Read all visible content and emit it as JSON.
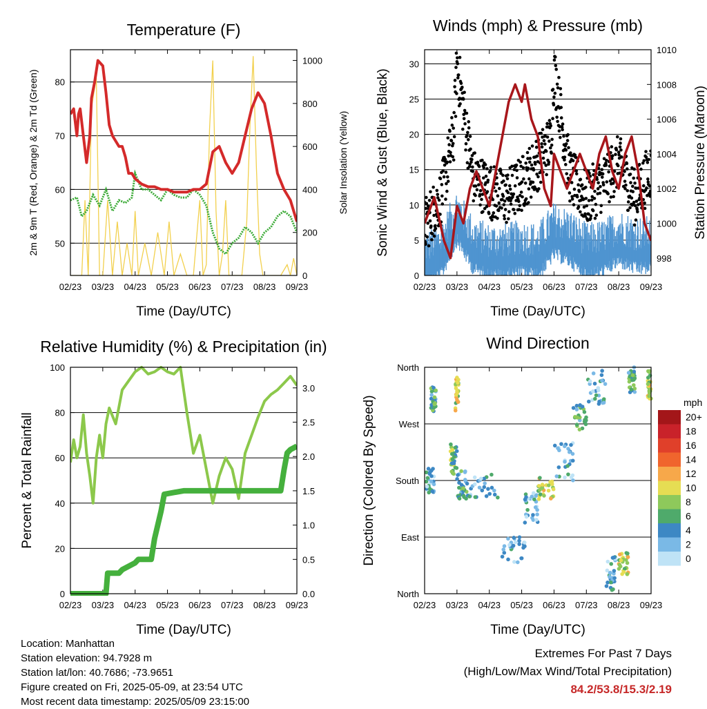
{
  "x_ticks": [
    "02/23",
    "03/23",
    "04/23",
    "05/23",
    "06/23",
    "07/23",
    "08/23",
    "09/23"
  ],
  "time_axis_label": "Time (Day/UTC)",
  "colors": {
    "temperature": "#d42a2a",
    "dewpoint": "#3aaa35",
    "solar": "#f2d04d",
    "wind": "#4f94d0",
    "gust": "#000000",
    "pressure": "#a8161b",
    "humidity": "#8cc84b",
    "rainfall": "#45b03d",
    "gridline": "#000000"
  },
  "chart_data": [
    {
      "id": "temperature",
      "type": "line",
      "title": "Temperature (F)",
      "xlabel": "Time (Day/UTC)",
      "ylabel": "2m & 9m T (Red, Orange) & 2m Td (Green)",
      "ylabel_right": "Solar Insolation (Yellow)",
      "ylim": [
        44,
        86
      ],
      "yticks": [
        50,
        60,
        70,
        80
      ],
      "ylim_right": [
        0,
        1050
      ],
      "yticks_right": [
        0,
        200,
        400,
        600,
        800,
        1000
      ],
      "grid": true,
      "series": [
        {
          "key": "t2m",
          "axis": "left",
          "x": [
            0,
            0.1,
            0.2,
            0.25,
            0.3,
            0.4,
            0.5,
            0.6,
            0.65,
            0.75,
            0.85,
            1,
            1.1,
            1.2,
            1.3,
            1.4,
            1.5,
            1.6,
            1.7,
            1.8,
            1.9,
            2,
            2.2,
            2.4,
            2.6,
            2.8,
            3,
            3.2,
            3.4,
            3.6,
            3.8,
            4,
            4.2,
            4.4,
            4.6,
            4.8,
            5,
            5.2,
            5.4,
            5.6,
            5.8,
            6,
            6.2,
            6.4,
            6.6,
            6.8,
            7
          ],
          "y": [
            74,
            75,
            70,
            74,
            75,
            70,
            65,
            70,
            77,
            80,
            84,
            83,
            78,
            72,
            70,
            69,
            68,
            68,
            66,
            63,
            63,
            62,
            61,
            60.5,
            60.5,
            60,
            60,
            59.5,
            59.5,
            59.5,
            60,
            60,
            61,
            67,
            68,
            65,
            63,
            65,
            70,
            75,
            78,
            76,
            70,
            63,
            60,
            58,
            54
          ]
        },
        {
          "key": "td2m",
          "axis": "left",
          "x": [
            0,
            0.2,
            0.35,
            0.5,
            0.7,
            0.9,
            1.1,
            1.3,
            1.5,
            1.7,
            1.9,
            2,
            2.2,
            2.4,
            2.6,
            2.8,
            3,
            3.2,
            3.4,
            3.6,
            3.8,
            4,
            4.2,
            4.4,
            4.6,
            4.8,
            5,
            5.2,
            5.4,
            5.6,
            5.8,
            6,
            6.2,
            6.4,
            6.6,
            6.8,
            7
          ],
          "y": [
            58,
            58.5,
            55,
            56,
            59,
            57,
            60,
            56,
            58,
            57.5,
            58.5,
            63,
            60,
            60,
            59,
            58,
            60,
            59,
            58.5,
            58.5,
            60,
            59,
            57,
            52,
            49,
            48,
            50,
            51,
            53,
            52,
            50,
            52,
            53,
            55,
            56,
            55,
            52
          ]
        },
        {
          "key": "solar",
          "axis": "right",
          "x": [
            0,
            0.35,
            0.45,
            0.55,
            0.65,
            0.8,
            0.9,
            1,
            1.15,
            1.3,
            1.45,
            1.6,
            1.75,
            1.9,
            2.0,
            2.1,
            2.3,
            2.5,
            2.7,
            2.9,
            3.05,
            3.2,
            3.4,
            3.6,
            3.8,
            4.0,
            4.1,
            4.2,
            4.3,
            4.4,
            4.5,
            4.6,
            4.7,
            4.8,
            4.9,
            5.1,
            5.3,
            5.45,
            5.55,
            5.65,
            5.75,
            5.85,
            5.95,
            6.1,
            6.3,
            6.5,
            6.7,
            6.8,
            6.9,
            7
          ],
          "y": [
            0,
            0,
            350,
            0,
            780,
            920,
            0,
            0,
            350,
            0,
            250,
            0,
            150,
            0,
            300,
            0,
            150,
            0,
            200,
            0,
            250,
            0,
            100,
            0,
            0,
            350,
            0,
            50,
            680,
            1000,
            300,
            0,
            100,
            350,
            0,
            0,
            0,
            250,
            700,
            1020,
            500,
            100,
            0,
            0,
            0,
            0,
            50,
            0,
            80,
            0
          ]
        }
      ]
    },
    {
      "id": "winds",
      "type": "line",
      "title": "Winds (mph) & Pressure (mb)",
      "xlabel": "Time (Day/UTC)",
      "ylabel": "Sonic Wind & Gust (Blue, Black)",
      "ylabel_right": "Station Pressure (Maroon)",
      "ylim": [
        0,
        32
      ],
      "yticks": [
        0,
        5,
        10,
        15,
        20,
        25,
        30
      ],
      "ylim_right": [
        997,
        1010
      ],
      "yticks_right": [
        998,
        1000,
        1002,
        1004,
        1006,
        1008,
        1010
      ],
      "grid": true,
      "series": [
        {
          "key": "wind",
          "axis": "left",
          "x": [
            0,
            0.5,
            1,
            1.5,
            2,
            2.5,
            3,
            3.5,
            4,
            4.5,
            5,
            5.5,
            6,
            6.5,
            7
          ],
          "y": [
            3,
            4,
            9,
            5,
            4,
            4,
            4.5,
            4,
            7,
            6,
            4,
            4.5,
            6,
            5,
            5
          ]
        },
        {
          "key": "gust",
          "axis": "left",
          "x": [
            0,
            0.5,
            0.9,
            1,
            1.5,
            2,
            2.5,
            3,
            3.5,
            3.9,
            4,
            4.5,
            5,
            5.5,
            6,
            6.5,
            7
          ],
          "y": [
            7,
            11,
            20,
            30,
            14,
            12,
            11,
            13,
            16,
            19,
            29,
            14,
            11,
            13,
            16,
            11,
            15
          ]
        },
        {
          "key": "pressure",
          "axis": "right",
          "x": [
            0,
            0.3,
            0.6,
            0.8,
            1,
            1.2,
            1.4,
            1.6,
            1.8,
            2,
            2.2,
            2.4,
            2.6,
            2.8,
            3,
            3.1,
            3.3,
            3.5,
            3.7,
            3.9,
            4,
            4.2,
            4.4,
            4.6,
            4.8,
            5,
            5.2,
            5.4,
            5.6,
            5.8,
            6,
            6.2,
            6.4,
            6.6,
            6.8,
            7
          ],
          "y": [
            1000,
            1001.5,
            999,
            998,
            1001,
            1000,
            1002,
            1003,
            1002,
            1001,
            1003,
            1005,
            1007,
            1008,
            1007,
            1008,
            1006,
            1005,
            1002,
            1001,
            1004,
            1003,
            1002,
            1003,
            1004,
            1003,
            1002,
            1004,
            1005,
            1003,
            1002,
            1004,
            1005,
            1003,
            1000,
            999
          ]
        }
      ]
    },
    {
      "id": "humidity",
      "type": "line",
      "title": "Relative Humidity (%) & Precipitation (in)",
      "xlabel": "Time (Day/UTC)",
      "ylabel": "Percent & Total Rainfall",
      "ylim": [
        0,
        100
      ],
      "yticks": [
        0,
        20,
        40,
        60,
        80,
        100
      ],
      "ylim_right": [
        0,
        3.3
      ],
      "yticks_right": [
        0.0,
        0.5,
        1.0,
        1.5,
        2.0,
        2.5,
        3.0
      ],
      "yticks_right_labels": [
        "0.0",
        "0.5",
        "1.0",
        "1.5",
        "2.0",
        "2.5",
        "3.0"
      ],
      "grid": true,
      "series": [
        {
          "key": "rh",
          "axis": "left",
          "x": [
            0,
            0.1,
            0.2,
            0.3,
            0.4,
            0.5,
            0.6,
            0.7,
            0.8,
            0.9,
            1,
            1.1,
            1.2,
            1.4,
            1.6,
            1.8,
            2,
            2.2,
            2.4,
            2.6,
            2.8,
            3,
            3.2,
            3.4,
            3.6,
            3.8,
            4,
            4.2,
            4.4,
            4.6,
            4.8,
            5,
            5.2,
            5.4,
            5.6,
            5.8,
            6,
            6.2,
            6.4,
            6.6,
            6.8,
            7
          ],
          "y": [
            58,
            68,
            60,
            65,
            79,
            62,
            52,
            40,
            60,
            70,
            60,
            75,
            82,
            75,
            90,
            94,
            98,
            100,
            97,
            98,
            100,
            98,
            97,
            100,
            80,
            62,
            70,
            55,
            40,
            52,
            60,
            55,
            42,
            62,
            70,
            78,
            85,
            88,
            90,
            93,
            96,
            92
          ]
        },
        {
          "key": "rain",
          "axis": "right",
          "x": [
            0,
            1.1,
            1.15,
            1.5,
            1.6,
            2.0,
            2.1,
            2.5,
            2.6,
            2.8,
            2.9,
            3.5,
            4.0,
            4.5,
            5.0,
            5.5,
            6.0,
            6.5,
            6.6,
            6.7,
            6.8,
            7
          ],
          "y": [
            0,
            0,
            0.3,
            0.3,
            0.35,
            0.45,
            0.5,
            0.5,
            0.8,
            1.2,
            1.45,
            1.5,
            1.5,
            1.5,
            1.5,
            1.5,
            1.5,
            1.5,
            1.8,
            2.05,
            2.1,
            2.15
          ]
        }
      ]
    },
    {
      "id": "direction",
      "type": "scatter",
      "title": "Wind Direction",
      "xlabel": "Time (Day/UTC)",
      "ylabel": "Direction (Colored By Speed)",
      "ylim": [
        0,
        360
      ],
      "ytick_labels": [
        "North",
        "East",
        "South",
        "West",
        "North"
      ],
      "grid": true,
      "legend_title": "mph",
      "legend": [
        {
          "label": "20+",
          "color": "#a31619"
        },
        {
          "label": "18",
          "color": "#c9222a"
        },
        {
          "label": "16",
          "color": "#e0402a"
        },
        {
          "label": "14",
          "color": "#f0652d"
        },
        {
          "label": "12",
          "color": "#f7a84a"
        },
        {
          "label": "10",
          "color": "#e6dd53"
        },
        {
          "label": "8",
          "color": "#8ec95b"
        },
        {
          "label": "6",
          "color": "#4faa6b"
        },
        {
          "label": "4",
          "color": "#3d88c4"
        },
        {
          "label": "2",
          "color": "#7ab9e6"
        },
        {
          "label": "0",
          "color": "#bfe3f6"
        }
      ],
      "clusters": [
        {
          "x": [
            0.05,
            0.3
          ],
          "y": [
            160,
            200
          ],
          "speed": 4
        },
        {
          "x": [
            0.2,
            0.35
          ],
          "y": [
            290,
            330
          ],
          "speed": 6
        },
        {
          "x": [
            0.8,
            1.0
          ],
          "y": [
            190,
            240
          ],
          "speed": 8
        },
        {
          "x": [
            0.95,
            1.05
          ],
          "y": [
            290,
            345
          ],
          "speed": 10
        },
        {
          "x": [
            1.0,
            1.3
          ],
          "y": [
            150,
            195
          ],
          "speed": 6
        },
        {
          "x": [
            1.3,
            2.3
          ],
          "y": [
            150,
            190
          ],
          "speed": 4
        },
        {
          "x": [
            2.4,
            3.1
          ],
          "y": [
            50,
            90
          ],
          "speed": 4
        },
        {
          "x": [
            3.1,
            3.5
          ],
          "y": [
            110,
            160
          ],
          "speed": 4
        },
        {
          "x": [
            3.5,
            4.0
          ],
          "y": [
            150,
            185
          ],
          "speed": 10
        },
        {
          "x": [
            4.0,
            4.6
          ],
          "y": [
            180,
            240
          ],
          "speed": 4
        },
        {
          "x": [
            4.6,
            5.0
          ],
          "y": [
            260,
            300
          ],
          "speed": 6
        },
        {
          "x": [
            5.0,
            5.6
          ],
          "y": [
            300,
            360
          ],
          "speed": 4
        },
        {
          "x": [
            5.6,
            5.9
          ],
          "y": [
            5,
            60
          ],
          "speed": 4
        },
        {
          "x": [
            6.0,
            6.3
          ],
          "y": [
            30,
            65
          ],
          "speed": 10
        },
        {
          "x": [
            6.3,
            6.5
          ],
          "y": [
            320,
            360
          ],
          "speed": 6
        },
        {
          "x": [
            6.9,
            7.0
          ],
          "y": [
            310,
            355
          ],
          "speed": 10
        }
      ]
    }
  ],
  "footer": {
    "location": "Location: Manhattan",
    "elevation": "Station elevation: 94.7928 m",
    "latlon": "Station lat/lon: 40.7686; -73.9651",
    "created": "Figure created on Fri, 2025-05-09, at 23:54 UTC",
    "recent": "Most recent data timestamp: 2025/05/09 23:15:00"
  },
  "extremes": {
    "title": "Extremes For Past 7 Days",
    "subtitle": "(High/Low/Max Wind/Total Precipitation)",
    "values": "84.2/53.8/15.3/2.19"
  }
}
